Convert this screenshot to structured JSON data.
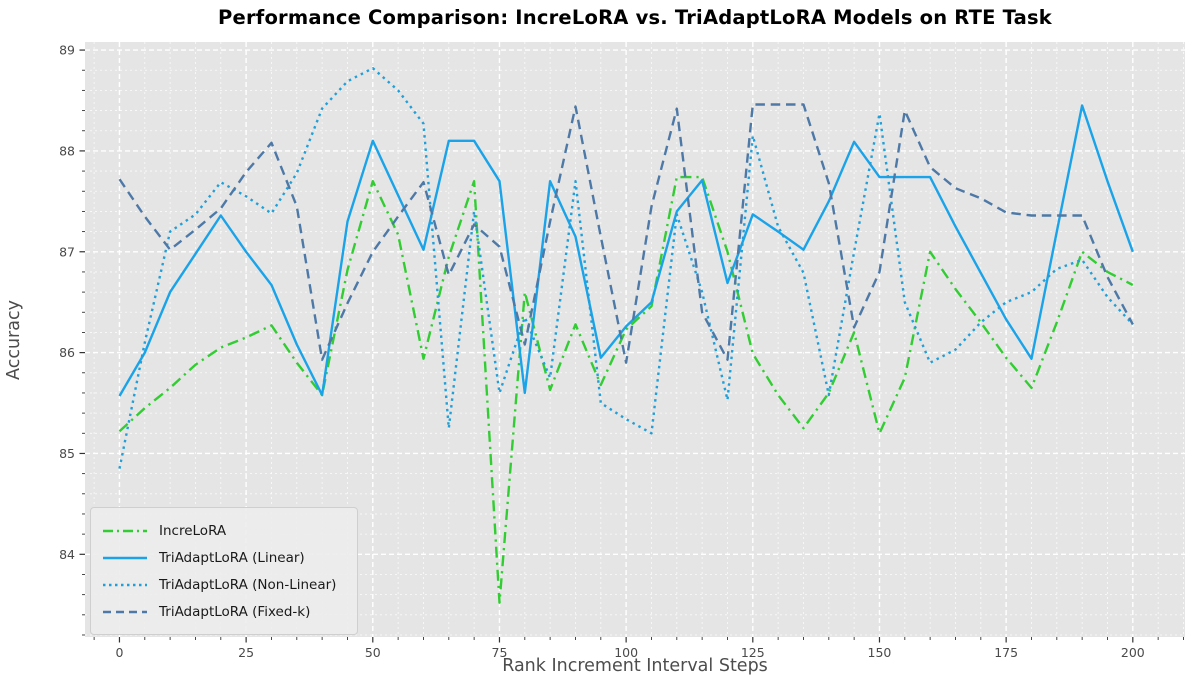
{
  "chart_data": {
    "type": "line",
    "title": "Performance Comparison: IncreLoRA vs. TriAdaptLoRA Models on RTE Task",
    "xlabel": "Rank Increment Interval Steps",
    "ylabel": "Accuracy",
    "x_ticks": [
      0,
      25,
      50,
      75,
      100,
      125,
      150,
      175,
      200
    ],
    "y_ticks": [
      84,
      85,
      86,
      87,
      88,
      89
    ],
    "xlim": [
      -6.8,
      210.3
    ],
    "ylim": [
      83.18,
      89.08
    ],
    "grid": "on",
    "legend_position": "lower left",
    "background_color": "#e5e5e5",
    "x": [
      0,
      5,
      10,
      15,
      20,
      25,
      30,
      35,
      40,
      45,
      50,
      55,
      60,
      65,
      70,
      75,
      80,
      85,
      90,
      95,
      100,
      105,
      110,
      115,
      120,
      125,
      130,
      135,
      140,
      145,
      150,
      155,
      160,
      165,
      170,
      175,
      180,
      185,
      190,
      195,
      200
    ],
    "series": [
      {
        "name": "IncreLoRA",
        "color": "#32cd32",
        "style": "dashdot",
        "values": [
          85.22,
          85.45,
          85.65,
          85.88,
          86.05,
          86.15,
          86.27,
          85.9,
          85.58,
          86.82,
          87.7,
          87.17,
          85.94,
          86.95,
          87.7,
          83.52,
          86.6,
          85.63,
          86.28,
          85.68,
          86.23,
          86.46,
          87.74,
          87.74,
          87.0,
          85.99,
          85.58,
          85.25,
          85.6,
          86.2,
          85.2,
          85.75,
          87.0,
          86.63,
          86.3,
          85.95,
          85.65,
          86.3,
          87.0,
          86.8,
          86.67
        ]
      },
      {
        "name": "TriAdaptLoRA (Linear)",
        "color": "#1aa3e8",
        "style": "solid",
        "values": [
          85.57,
          86.0,
          86.6,
          86.98,
          87.36,
          87.0,
          86.67,
          86.08,
          85.58,
          87.3,
          88.1,
          87.56,
          87.02,
          88.1,
          88.1,
          87.7,
          85.6,
          87.7,
          87.15,
          85.95,
          86.26,
          86.5,
          87.4,
          87.71,
          86.69,
          87.37,
          87.2,
          87.02,
          87.5,
          88.09,
          87.74,
          87.74,
          87.74,
          87.25,
          86.79,
          86.33,
          85.94,
          87.2,
          88.45,
          87.7,
          87.0
        ]
      },
      {
        "name": "TriAdaptLoRA (Non-Linear)",
        "color": "#219fd8",
        "style": "dotted",
        "values": [
          84.85,
          86.1,
          87.2,
          87.37,
          87.69,
          87.55,
          87.38,
          87.78,
          88.42,
          88.69,
          88.82,
          88.6,
          88.27,
          85.25,
          87.4,
          85.6,
          86.35,
          85.75,
          87.7,
          85.5,
          85.34,
          85.2,
          87.37,
          86.6,
          85.53,
          88.15,
          87.25,
          86.79,
          85.58,
          87.0,
          88.37,
          86.5,
          85.9,
          86.03,
          86.3,
          86.5,
          86.6,
          86.83,
          86.92,
          86.55,
          86.28
        ]
      },
      {
        "name": "TriAdaptLoRA (Fixed-k)",
        "color": "#4e79a7",
        "style": "dashed",
        "values": [
          87.72,
          87.35,
          87.02,
          87.22,
          87.43,
          87.79,
          88.08,
          87.45,
          85.93,
          86.49,
          87.0,
          87.35,
          87.69,
          86.77,
          87.27,
          87.05,
          86.08,
          87.3,
          88.44,
          87.15,
          85.9,
          87.45,
          88.42,
          86.4,
          85.93,
          88.46,
          88.46,
          88.46,
          87.68,
          86.25,
          86.8,
          88.4,
          87.84,
          87.63,
          87.53,
          87.39,
          87.36,
          87.36,
          87.36,
          86.75,
          86.28
        ]
      }
    ]
  }
}
